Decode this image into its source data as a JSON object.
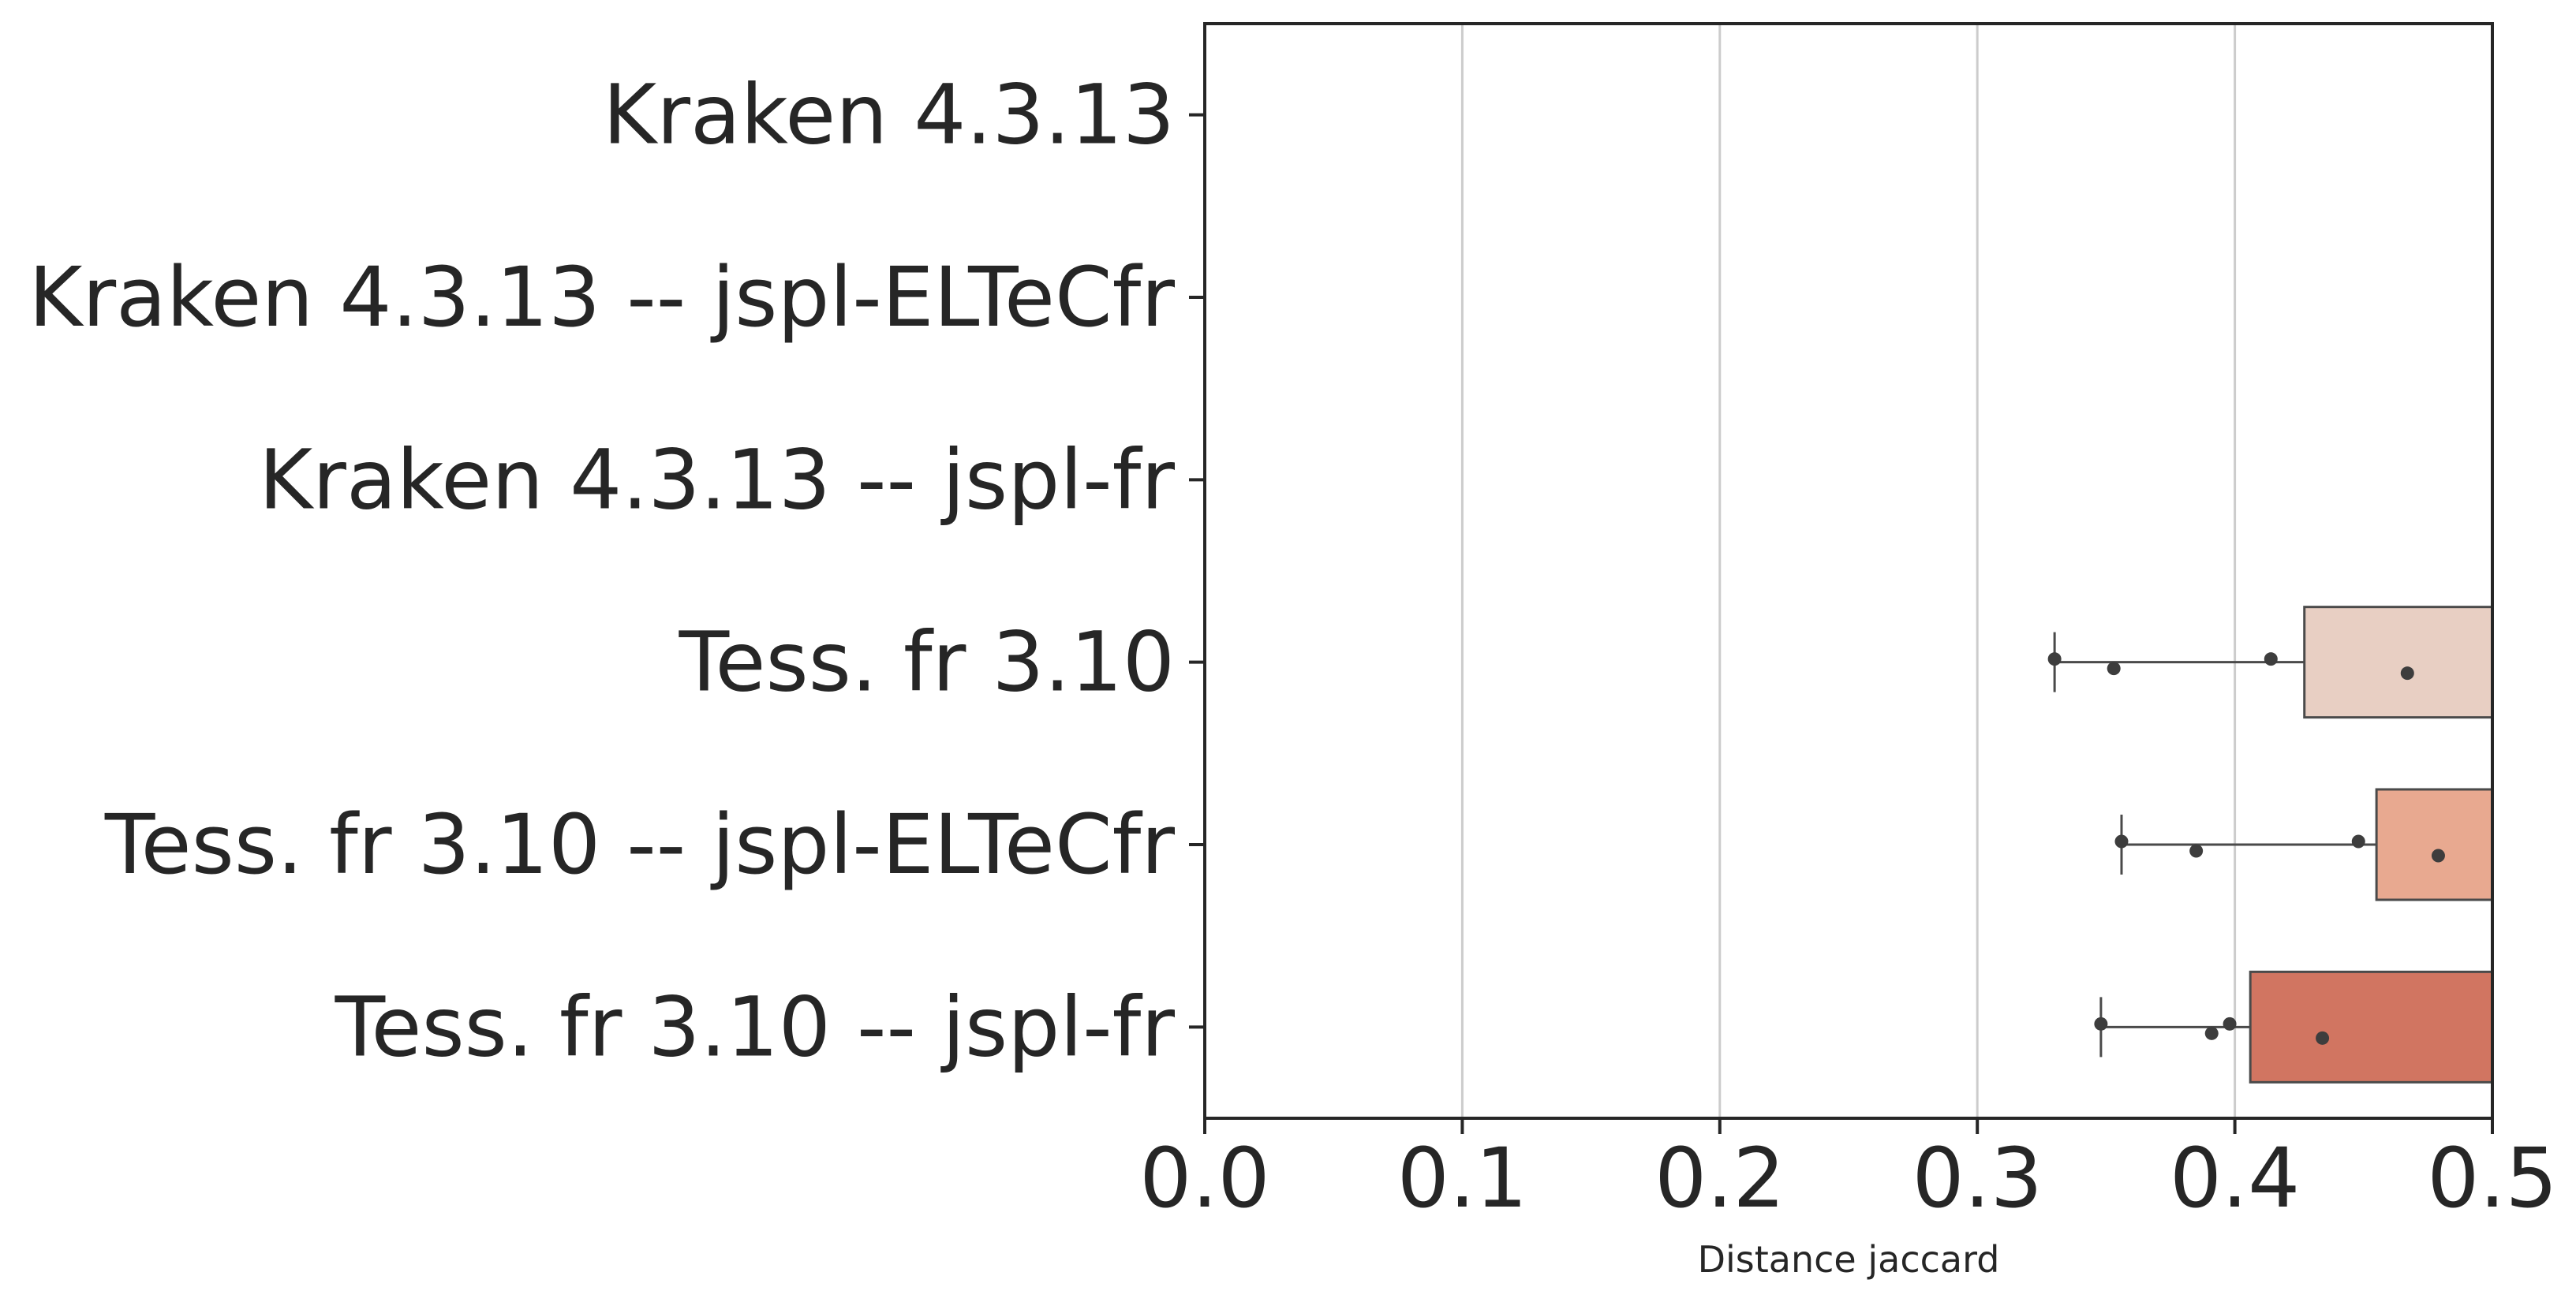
{
  "chart_data": {
    "type": "box",
    "orientation": "horizontal",
    "title": "",
    "xlabel": "Distance jaccard",
    "ylabel": "",
    "xlim": [
      0.0,
      0.5
    ],
    "x_ticks": [
      "0.0",
      "0.1",
      "0.2",
      "0.3",
      "0.4",
      "0.5"
    ],
    "grid": "vertical gridlines",
    "categories": [
      "Kraken 4.3.13",
      "Kraken 4.3.13 -- jspl-ELTeCfr",
      "Kraken 4.3.13 -- jspl-fr",
      "Tess. fr 3.10",
      "Tess. fr 3.10 -- jspl-ELTeCfr",
      "Tess. fr 3.10 -- jspl-fr"
    ],
    "boxes": [
      null,
      null,
      null,
      {
        "whisker_low": 0.33,
        "q1": 0.427,
        "box_right_visible": 0.5,
        "points": [
          0.33,
          0.353,
          0.414,
          0.467
        ],
        "color": "#e8cfc3"
      },
      {
        "whisker_low": 0.356,
        "q1": 0.455,
        "box_right_visible": 0.5,
        "points": [
          0.356,
          0.385,
          0.448,
          0.479
        ],
        "color": "#e8a990"
      },
      {
        "whisker_low": 0.348,
        "q1": 0.406,
        "box_right_visible": 0.5,
        "points": [
          0.348,
          0.391,
          0.398,
          0.434
        ],
        "color": "#d17561"
      }
    ]
  }
}
